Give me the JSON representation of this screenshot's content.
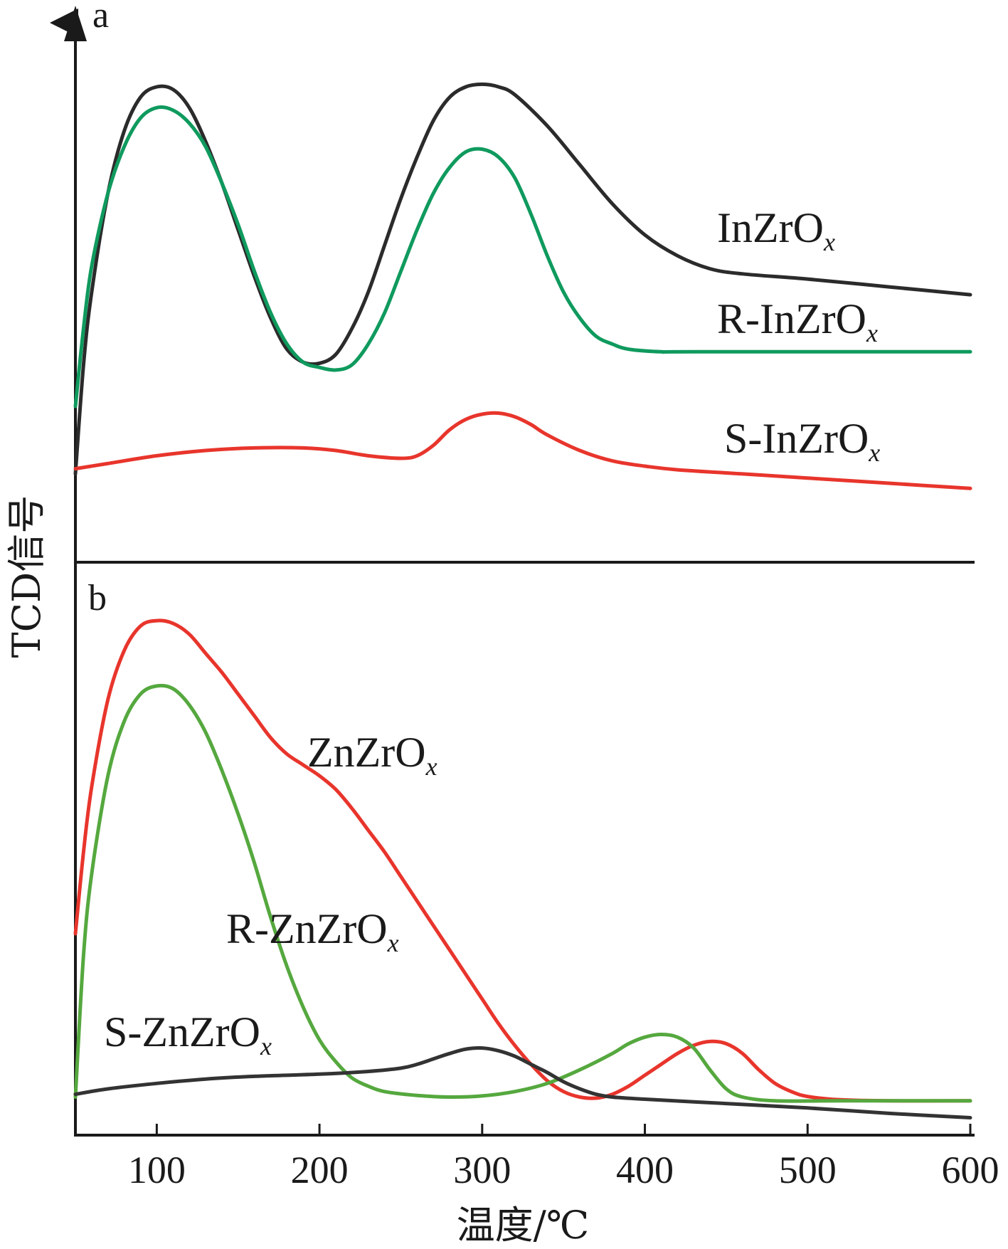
{
  "chart_data": {
    "type": "line",
    "xlabel": "温度/℃",
    "ylabel": "TCD信号",
    "xticks": [
      100,
      200,
      300,
      400,
      500,
      600
    ],
    "xlim": [
      50,
      600
    ],
    "panels": [
      {
        "id": "a",
        "label": "a",
        "series": [
          {
            "name": "InZrO",
            "subscript": "x",
            "color": "#2b2b2b",
            "points": [
              [
                50,
                0.17
              ],
              [
                55,
                0.38
              ],
              [
                60,
                0.52
              ],
              [
                70,
                0.71
              ],
              [
                80,
                0.83
              ],
              [
                90,
                0.895
              ],
              [
                100,
                0.915
              ],
              [
                110,
                0.91
              ],
              [
                120,
                0.875
              ],
              [
                130,
                0.81
              ],
              [
                140,
                0.73
              ],
              [
                150,
                0.64
              ],
              [
                160,
                0.55
              ],
              [
                170,
                0.47
              ],
              [
                180,
                0.41
              ],
              [
                190,
                0.385
              ],
              [
                200,
                0.383
              ],
              [
                210,
                0.4
              ],
              [
                220,
                0.45
              ],
              [
                230,
                0.52
              ],
              [
                240,
                0.61
              ],
              [
                250,
                0.7
              ],
              [
                260,
                0.78
              ],
              [
                270,
                0.85
              ],
              [
                280,
                0.895
              ],
              [
                290,
                0.915
              ],
              [
                300,
                0.92
              ],
              [
                310,
                0.915
              ],
              [
                320,
                0.9
              ],
              [
                340,
                0.84
              ],
              [
                360,
                0.765
              ],
              [
                380,
                0.69
              ],
              [
                400,
                0.63
              ],
              [
                420,
                0.59
              ],
              [
                440,
                0.565
              ],
              [
                460,
                0.555
              ],
              [
                500,
                0.545
              ],
              [
                550,
                0.53
              ],
              [
                600,
                0.515
              ]
            ]
          },
          {
            "name": "R-InZrO",
            "subscript": "x",
            "color": "#0f9a5e",
            "points": [
              [
                50,
                0.3
              ],
              [
                55,
                0.45
              ],
              [
                60,
                0.57
              ],
              [
                70,
                0.71
              ],
              [
                80,
                0.8
              ],
              [
                90,
                0.855
              ],
              [
                100,
                0.875
              ],
              [
                110,
                0.87
              ],
              [
                120,
                0.845
              ],
              [
                130,
                0.8
              ],
              [
                140,
                0.73
              ],
              [
                150,
                0.65
              ],
              [
                160,
                0.56
              ],
              [
                170,
                0.48
              ],
              [
                180,
                0.42
              ],
              [
                190,
                0.385
              ],
              [
                200,
                0.375
              ],
              [
                210,
                0.37
              ],
              [
                220,
                0.38
              ],
              [
                230,
                0.42
              ],
              [
                240,
                0.48
              ],
              [
                250,
                0.56
              ],
              [
                260,
                0.64
              ],
              [
                270,
                0.71
              ],
              [
                280,
                0.76
              ],
              [
                290,
                0.79
              ],
              [
                300,
                0.795
              ],
              [
                310,
                0.78
              ],
              [
                320,
                0.74
              ],
              [
                330,
                0.67
              ],
              [
                340,
                0.59
              ],
              [
                350,
                0.52
              ],
              [
                360,
                0.47
              ],
              [
                370,
                0.435
              ],
              [
                380,
                0.42
              ],
              [
                390,
                0.41
              ],
              [
                410,
                0.405
              ],
              [
                430,
                0.405
              ],
              [
                600,
                0.405
              ]
            ]
          },
          {
            "name": "S-InZrO",
            "subscript": "x",
            "color": "#e8352c",
            "points": [
              [
                50,
                0.18
              ],
              [
                70,
                0.19
              ],
              [
                100,
                0.205
              ],
              [
                130,
                0.215
              ],
              [
                160,
                0.22
              ],
              [
                190,
                0.22
              ],
              [
                210,
                0.215
              ],
              [
                230,
                0.205
              ],
              [
                250,
                0.2
              ],
              [
                260,
                0.205
              ],
              [
                270,
                0.225
              ],
              [
                280,
                0.255
              ],
              [
                290,
                0.275
              ],
              [
                300,
                0.285
              ],
              [
                310,
                0.287
              ],
              [
                320,
                0.28
              ],
              [
                330,
                0.265
              ],
              [
                340,
                0.245
              ],
              [
                360,
                0.215
              ],
              [
                380,
                0.195
              ],
              [
                400,
                0.185
              ],
              [
                420,
                0.178
              ],
              [
                460,
                0.17
              ],
              [
                500,
                0.162
              ],
              [
                550,
                0.152
              ],
              [
                600,
                0.142
              ]
            ]
          }
        ]
      },
      {
        "id": "b",
        "label": "b",
        "series": [
          {
            "name": "ZnZrO",
            "subscript": "x",
            "color": "#e8352c",
            "points": [
              [
                50,
                0.37
              ],
              [
                55,
                0.52
              ],
              [
                60,
                0.64
              ],
              [
                70,
                0.8
              ],
              [
                80,
                0.89
              ],
              [
                90,
                0.935
              ],
              [
                100,
                0.945
              ],
              [
                110,
                0.94
              ],
              [
                120,
                0.92
              ],
              [
                130,
                0.885
              ],
              [
                140,
                0.85
              ],
              [
                150,
                0.81
              ],
              [
                160,
                0.77
              ],
              [
                170,
                0.73
              ],
              [
                180,
                0.7
              ],
              [
                190,
                0.68
              ],
              [
                200,
                0.66
              ],
              [
                210,
                0.635
              ],
              [
                220,
                0.6
              ],
              [
                230,
                0.56
              ],
              [
                240,
                0.52
              ],
              [
                250,
                0.475
              ],
              [
                260,
                0.43
              ],
              [
                270,
                0.385
              ],
              [
                280,
                0.34
              ],
              [
                290,
                0.295
              ],
              [
                300,
                0.25
              ],
              [
                310,
                0.205
              ],
              [
                320,
                0.165
              ],
              [
                330,
                0.13
              ],
              [
                340,
                0.1
              ],
              [
                350,
                0.08
              ],
              [
                360,
                0.07
              ],
              [
                370,
                0.068
              ],
              [
                380,
                0.075
              ],
              [
                390,
                0.09
              ],
              [
                400,
                0.11
              ],
              [
                410,
                0.13
              ],
              [
                420,
                0.15
              ],
              [
                430,
                0.165
              ],
              [
                440,
                0.172
              ],
              [
                450,
                0.168
              ],
              [
                460,
                0.15
              ],
              [
                470,
                0.12
              ],
              [
                480,
                0.095
              ],
              [
                490,
                0.08
              ],
              [
                500,
                0.071
              ],
              [
                520,
                0.065
              ],
              [
                550,
                0.063
              ],
              [
                600,
                0.063
              ]
            ]
          },
          {
            "name": "R-ZnZrO",
            "subscript": "x",
            "color": "#55a83e",
            "points": [
              [
                50,
                0.07
              ],
              [
                55,
                0.33
              ],
              [
                60,
                0.48
              ],
              [
                70,
                0.66
              ],
              [
                80,
                0.76
              ],
              [
                90,
                0.81
              ],
              [
                100,
                0.825
              ],
              [
                110,
                0.82
              ],
              [
                120,
                0.79
              ],
              [
                130,
                0.74
              ],
              [
                140,
                0.67
              ],
              [
                150,
                0.59
              ],
              [
                160,
                0.5
              ],
              [
                170,
                0.4
              ],
              [
                180,
                0.31
              ],
              [
                190,
                0.235
              ],
              [
                200,
                0.175
              ],
              [
                210,
                0.135
              ],
              [
                220,
                0.105
              ],
              [
                230,
                0.09
              ],
              [
                240,
                0.08
              ],
              [
                260,
                0.073
              ],
              [
                280,
                0.07
              ],
              [
                300,
                0.072
              ],
              [
                320,
                0.08
              ],
              [
                340,
                0.095
              ],
              [
                360,
                0.12
              ],
              [
                380,
                0.15
              ],
              [
                390,
                0.168
              ],
              [
                400,
                0.18
              ],
              [
                410,
                0.185
              ],
              [
                420,
                0.18
              ],
              [
                430,
                0.16
              ],
              [
                440,
                0.12
              ],
              [
                450,
                0.085
              ],
              [
                460,
                0.07
              ],
              [
                480,
                0.063
              ],
              [
                520,
                0.063
              ],
              [
                600,
                0.063
              ]
            ]
          },
          {
            "name": "S-ZnZrO",
            "subscript": "x",
            "color": "#333333",
            "points": [
              [
                50,
                0.075
              ],
              [
                70,
                0.085
              ],
              [
                100,
                0.095
              ],
              [
                130,
                0.103
              ],
              [
                160,
                0.108
              ],
              [
                200,
                0.112
              ],
              [
                230,
                0.117
              ],
              [
                250,
                0.123
              ],
              [
                260,
                0.13
              ],
              [
                270,
                0.14
              ],
              [
                280,
                0.15
              ],
              [
                290,
                0.158
              ],
              [
                300,
                0.16
              ],
              [
                310,
                0.155
              ],
              [
                320,
                0.145
              ],
              [
                330,
                0.13
              ],
              [
                340,
                0.115
              ],
              [
                350,
                0.098
              ],
              [
                360,
                0.085
              ],
              [
                370,
                0.075
              ],
              [
                380,
                0.07
              ],
              [
                400,
                0.066
              ],
              [
                450,
                0.058
              ],
              [
                500,
                0.05
              ],
              [
                550,
                0.04
              ],
              [
                600,
                0.032
              ]
            ]
          }
        ]
      }
    ]
  }
}
